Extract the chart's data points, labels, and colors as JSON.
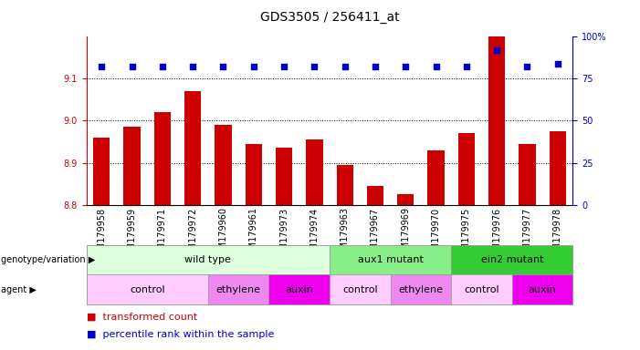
{
  "title": "GDS3505 / 256411_at",
  "samples": [
    "GSM179958",
    "GSM179959",
    "GSM179971",
    "GSM179972",
    "GSM179960",
    "GSM179961",
    "GSM179973",
    "GSM179974",
    "GSM179963",
    "GSM179967",
    "GSM179969",
    "GSM179970",
    "GSM179975",
    "GSM179976",
    "GSM179977",
    "GSM179978"
  ],
  "bar_values": [
    8.96,
    8.985,
    9.02,
    9.07,
    8.99,
    8.945,
    8.935,
    8.955,
    8.895,
    8.845,
    8.825,
    8.93,
    8.97,
    9.2,
    8.945,
    8.975
  ],
  "percentile_values": [
    82,
    82,
    82,
    82,
    82,
    82,
    82,
    82,
    82,
    82,
    82,
    82,
    82,
    92,
    82,
    84
  ],
  "bar_color": "#cc0000",
  "percentile_color": "#0000cc",
  "ymin": 8.8,
  "ymax": 9.2,
  "y_ticks": [
    8.8,
    8.9,
    9.0,
    9.1
  ],
  "y2min": 0,
  "y2max": 100,
  "y2_ticks": [
    0,
    25,
    50,
    75,
    100
  ],
  "genotype_groups": [
    {
      "label": "wild type",
      "start": 0,
      "end": 8,
      "color": "#ddffdd"
    },
    {
      "label": "aux1 mutant",
      "start": 8,
      "end": 12,
      "color": "#88ee88"
    },
    {
      "label": "ein2 mutant",
      "start": 12,
      "end": 16,
      "color": "#33cc33"
    }
  ],
  "agent_groups": [
    {
      "label": "control",
      "start": 0,
      "end": 4,
      "color": "#ffccff"
    },
    {
      "label": "ethylene",
      "start": 4,
      "end": 6,
      "color": "#ee88ee"
    },
    {
      "label": "auxin",
      "start": 6,
      "end": 8,
      "color": "#ee00ee"
    },
    {
      "label": "control",
      "start": 8,
      "end": 10,
      "color": "#ffccff"
    },
    {
      "label": "ethylene",
      "start": 10,
      "end": 12,
      "color": "#ee88ee"
    },
    {
      "label": "control",
      "start": 12,
      "end": 14,
      "color": "#ffccff"
    },
    {
      "label": "auxin",
      "start": 14,
      "end": 16,
      "color": "#ee00ee"
    }
  ],
  "legend_items": [
    {
      "label": "transformed count",
      "color": "#cc0000"
    },
    {
      "label": "percentile rank within the sample",
      "color": "#0000cc"
    }
  ],
  "background_color": "#ffffff",
  "title_fontsize": 10,
  "tick_fontsize": 7,
  "bar_label_fontsize": 7,
  "row_fontsize": 8,
  "legend_fontsize": 8
}
